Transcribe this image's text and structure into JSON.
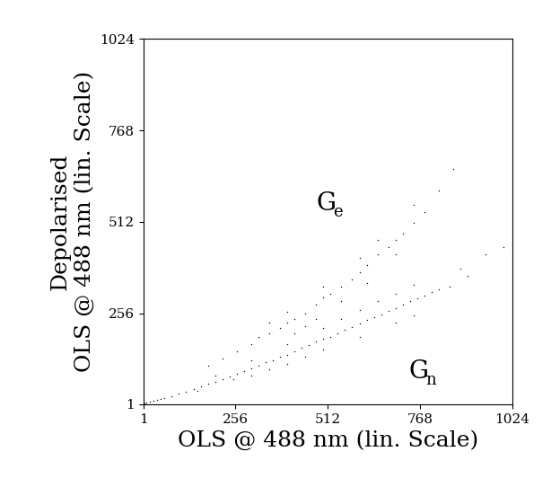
{
  "chart_data": {
    "type": "scatter",
    "xlabel": "OLS @ 488 nm (lin. Scale)",
    "ylabel": "Depolarised\nOLS @ 488 nm (lin. Scale)",
    "xlim": [
      1,
      1024
    ],
    "ylim": [
      1,
      1024
    ],
    "xticks": [
      1,
      256,
      512,
      768,
      1024
    ],
    "yticks": [
      1,
      256,
      512,
      768,
      1024
    ],
    "grid": false,
    "annotations": [
      {
        "text": "G",
        "subscript": "e"
      },
      {
        "text": "G",
        "subscript": "n"
      }
    ],
    "series": [
      {
        "color": "#000000",
        "marker": "point",
        "x": [
          5,
          10,
          20,
          30,
          40,
          50,
          60,
          80,
          100,
          120,
          140,
          160,
          180,
          200,
          220,
          240,
          260,
          280,
          300,
          320,
          340,
          360,
          380,
          400,
          420,
          440,
          460,
          480,
          500,
          520,
          540,
          560,
          580,
          600,
          620,
          640,
          660,
          680,
          700,
          720,
          740,
          760,
          780,
          800,
          820,
          300,
          300,
          400,
          400,
          500,
          500,
          600,
          600,
          700,
          700,
          750,
          750,
          650,
          550,
          450,
          350,
          250,
          200,
          150,
          850,
          900,
          950,
          1000,
          880
        ],
        "y": [
          4,
          6,
          8,
          11,
          12,
          16,
          18,
          24,
          30,
          36,
          44,
          50,
          58,
          64,
          70,
          78,
          86,
          94,
          102,
          110,
          118,
          124,
          134,
          140,
          150,
          158,
          168,
          176,
          184,
          190,
          200,
          210,
          218,
          226,
          236,
          244,
          252,
          262,
          270,
          280,
          290,
          298,
          306,
          314,
          322,
          80,
          125,
          115,
          170,
          155,
          215,
          190,
          265,
          230,
          310,
          250,
          335,
          290,
          240,
          135,
          100,
          70,
          80,
          38,
          330,
          360,
          420,
          440,
          380
        ]
      },
      {
        "color": "#000000",
        "marker": "point",
        "x": [
          180,
          220,
          260,
          300,
          320,
          350,
          380,
          400,
          420,
          450,
          480,
          500,
          520,
          550,
          580,
          600,
          620,
          650,
          680,
          700,
          720,
          750,
          780,
          820,
          860,
          400,
          450,
          500,
          550,
          600,
          620,
          650,
          700,
          750,
          420,
          350,
          480
        ],
        "y": [
          110,
          130,
          150,
          170,
          190,
          200,
          215,
          230,
          240,
          255,
          280,
          300,
          310,
          330,
          350,
          370,
          390,
          420,
          440,
          460,
          480,
          510,
          540,
          600,
          660,
          260,
          220,
          330,
          290,
          410,
          340,
          460,
          420,
          560,
          200,
          230,
          240
        ]
      }
    ]
  }
}
